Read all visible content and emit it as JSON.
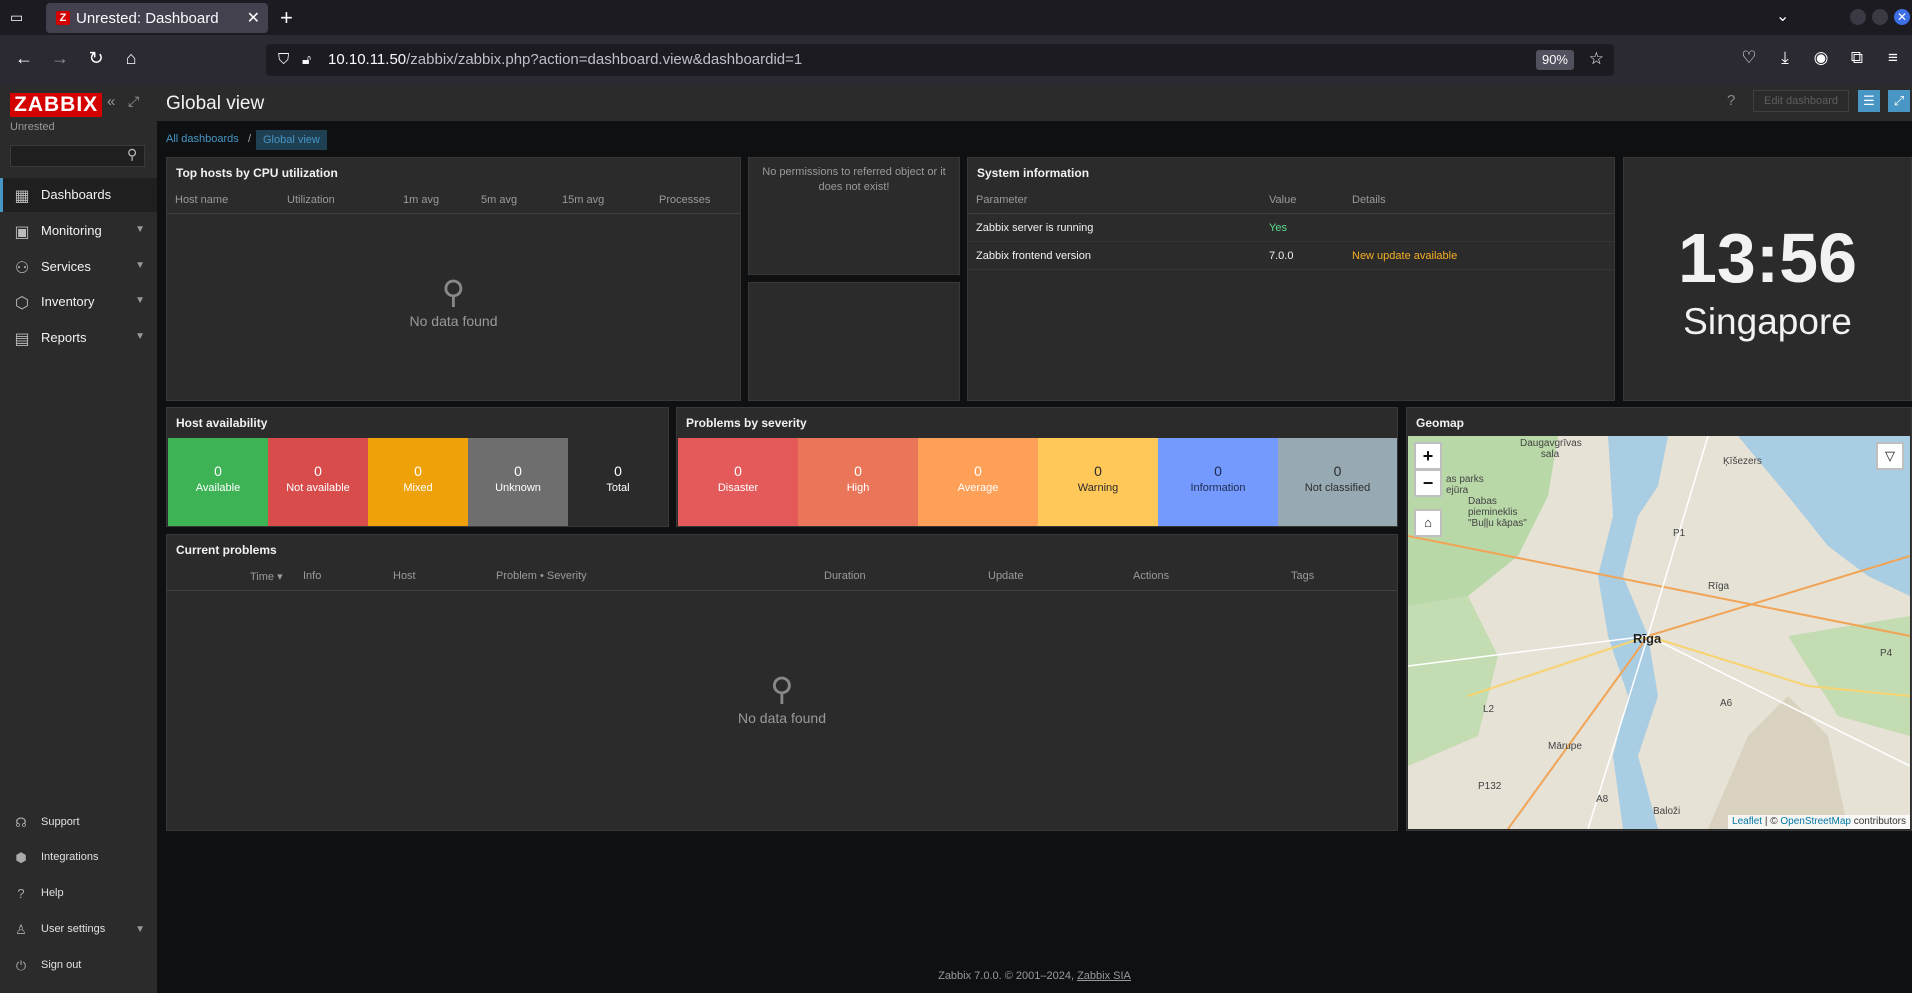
{
  "browser": {
    "tab_title": "Unrested: Dashboard",
    "tab_favicon": "Z",
    "url_host": "10.10.11.50",
    "url_path": "/zabbix/zabbix.php?action=dashboard.view&dashboardid=1",
    "zoom": "90%"
  },
  "sidebar": {
    "logo": "ZABBIX",
    "server_name": "Unrested",
    "search_value": "",
    "menu": [
      {
        "label": "Dashboards",
        "icon": "dashboards-icon"
      },
      {
        "label": "Monitoring",
        "icon": "monitoring-icon"
      },
      {
        "label": "Services",
        "icon": "services-icon"
      },
      {
        "label": "Inventory",
        "icon": "inventory-icon"
      },
      {
        "label": "Reports",
        "icon": "reports-icon"
      }
    ],
    "footer": [
      {
        "label": "Support",
        "icon": "support-icon"
      },
      {
        "label": "Integrations",
        "icon": "integrations-icon"
      },
      {
        "label": "Help",
        "icon": "help-icon"
      },
      {
        "label": "User settings",
        "icon": "user-icon"
      },
      {
        "label": "Sign out",
        "icon": "sign-out-icon"
      }
    ]
  },
  "header": {
    "title": "Global view",
    "help": "?",
    "edit_label": "Edit dashboard"
  },
  "breadcrumb": {
    "root": "All dashboards",
    "separator": "/",
    "current": "Global view"
  },
  "widgets": {
    "top_hosts": {
      "title": "Top hosts by CPU utilization",
      "columns": [
        "Host name",
        "Utilization",
        "1m avg",
        "5m avg",
        "15m avg",
        "Processes"
      ],
      "empty": "No data found"
    },
    "no_permission": {
      "message": "No permissions to referred object or it does not exist!"
    },
    "system_info": {
      "title": "System information",
      "columns": [
        "Parameter",
        "Value",
        "Details"
      ],
      "rows": [
        {
          "parameter": "Zabbix server is running",
          "value": "Yes",
          "details": ""
        },
        {
          "parameter": "Zabbix frontend version",
          "value": "7.0.0",
          "details": "New update available"
        }
      ]
    },
    "clock": {
      "time": "13:56",
      "zone": "Singapore"
    },
    "host_availability": {
      "title": "Host availability",
      "cells": [
        {
          "value": "0",
          "label": "Available",
          "color": "#3db356"
        },
        {
          "value": "0",
          "label": "Not available",
          "color": "#d84c4c"
        },
        {
          "value": "0",
          "label": "Mixed",
          "color": "#efa10a"
        },
        {
          "value": "0",
          "label": "Unknown",
          "color": "#6e6e6e"
        },
        {
          "value": "0",
          "label": "Total",
          "color": "#2b2b2b"
        }
      ]
    },
    "problems_by_severity": {
      "title": "Problems by severity",
      "cells": [
        {
          "value": "0",
          "label": "Disaster",
          "color": "#e45959"
        },
        {
          "value": "0",
          "label": "High",
          "color": "#e97659"
        },
        {
          "value": "0",
          "label": "Average",
          "color": "#ffa059"
        },
        {
          "value": "0",
          "label": "Warning",
          "color": "#ffc859"
        },
        {
          "value": "0",
          "label": "Information",
          "color": "#7499ff"
        },
        {
          "value": "0",
          "label": "Not classified",
          "color": "#97aab3"
        }
      ]
    },
    "current_problems": {
      "title": "Current problems",
      "columns": [
        "Time ▾",
        "Info",
        "Host",
        "Problem • Severity",
        "Duration",
        "Update",
        "Actions",
        "Tags"
      ],
      "empty": "No data found"
    },
    "geomap": {
      "title": "Geomap",
      "zoom_in": "+",
      "zoom_out": "−",
      "labels": {
        "city": "Rīga",
        "city2": "Rīga",
        "marupe": "Mārupe",
        "balozi": "Baloži",
        "daugavgrivas": "Daugavgrīvas sala",
        "park": "Dabas piemineklis \"Buļļu kāpas\"",
        "kazu": "Ķīšezers",
        "lake_park": "as parks ejūra",
        "p1": "P1",
        "p4": "P4",
        "a6": "A6",
        "l2": "L2",
        "a8": "A8",
        "p132": "P132"
      },
      "attribution_leaflet": "Leaflet",
      "attribution_sep": " | © ",
      "attribution_osm": "OpenStreetMap",
      "attribution_tail": " contributors"
    }
  },
  "footer": {
    "text": "Zabbix 7.0.0. © 2001–2024, ",
    "link": "Zabbix SIA"
  }
}
